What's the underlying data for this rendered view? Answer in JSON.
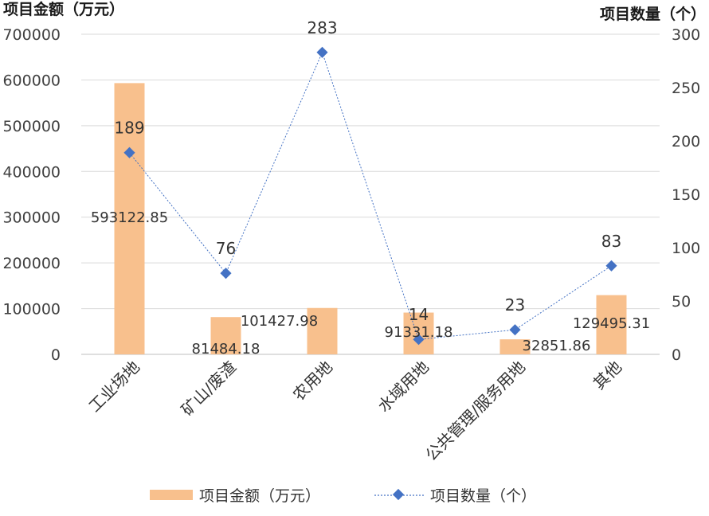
{
  "chart_data": {
    "type": "bar+line",
    "categories": [
      "工业场地",
      "矿山/废渣",
      "农用地",
      "水域用地",
      "公共管理/服务用地",
      "其他"
    ],
    "series": [
      {
        "name": "项目金额（万元）",
        "type": "bar",
        "axis": "left",
        "color": "#f8c08d",
        "values": [
          593122.85,
          81484.18,
          101427.98,
          91331.18,
          32851.86,
          129495.31
        ],
        "labels": [
          "593122.85",
          "81484.18",
          "101427.98",
          "91331.18",
          "32851.86",
          "129495.31"
        ]
      },
      {
        "name": "项目数量（个）",
        "type": "line",
        "axis": "right",
        "color": "#4472c4",
        "values": [
          189,
          76,
          283,
          14,
          23,
          83
        ],
        "labels": [
          "189",
          "76",
          "283",
          "14",
          "23",
          "83"
        ]
      }
    ],
    "y_left": {
      "label": "项目金额（万元）",
      "range": [
        0,
        700000
      ],
      "ticks": [
        "0",
        "100000",
        "200000",
        "300000",
        "400000",
        "500000",
        "600000",
        "700000"
      ]
    },
    "y_right": {
      "label": "项目数量（个）",
      "range": [
        0,
        300
      ],
      "ticks": [
        "0",
        "50",
        "100",
        "150",
        "200",
        "250",
        "300"
      ]
    },
    "grid": true,
    "legend_position": "bottom"
  }
}
